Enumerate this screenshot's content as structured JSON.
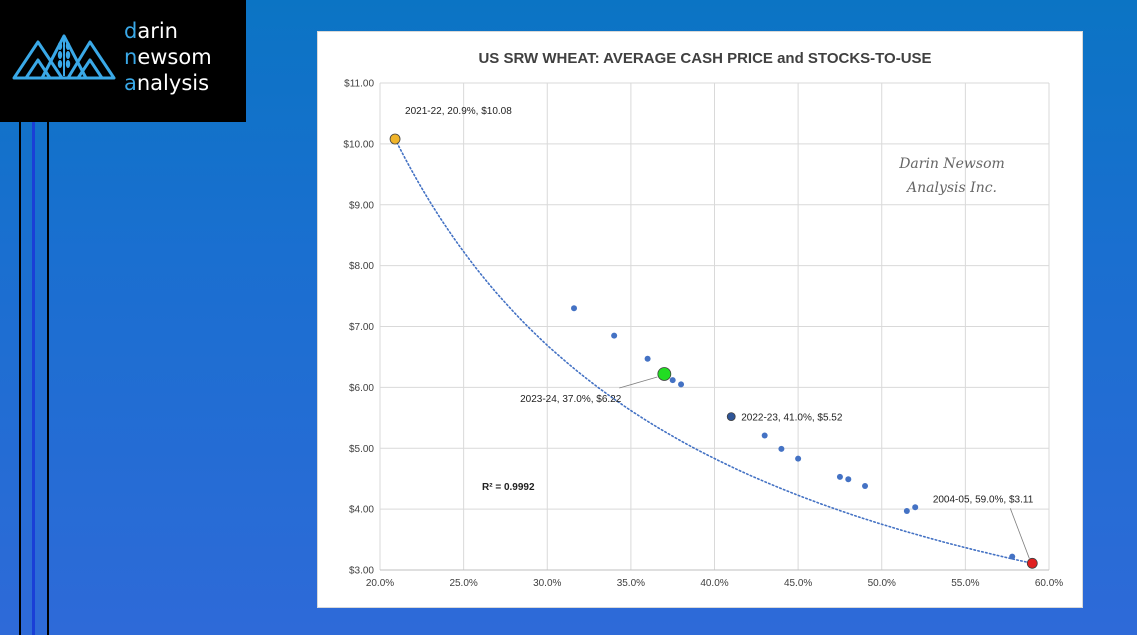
{
  "brand": {
    "line1_accent": "d",
    "line1_rest": "arin",
    "line2_accent": "n",
    "line2_rest": "ewsom",
    "line3_accent": "a",
    "line3_rest": "nalysis",
    "accent_color": "#3aa9e8"
  },
  "chart_data": {
    "type": "scatter",
    "title": "US SRW WHEAT: AVERAGE CASH PRICE and STOCKS-TO-USE",
    "xlabel": "",
    "ylabel": "",
    "xlim": [
      20.0,
      60.0
    ],
    "ylim": [
      3.0,
      11.0
    ],
    "x_ticks": [
      "20.0%",
      "25.0%",
      "30.0%",
      "35.0%",
      "40.0%",
      "45.0%",
      "50.0%",
      "55.0%",
      "60.0%"
    ],
    "y_ticks": [
      "$3.00",
      "$4.00",
      "$5.00",
      "$6.00",
      "$7.00",
      "$8.00",
      "$9.00",
      "$10.00",
      "$11.00"
    ],
    "grid": true,
    "trendline": {
      "style": "dotted",
      "color": "#4472c4",
      "r_squared_label": "R² = 0.9992"
    },
    "points": [
      {
        "x": 31.6,
        "y": 7.3
      },
      {
        "x": 34.0,
        "y": 6.85
      },
      {
        "x": 36.0,
        "y": 6.47
      },
      {
        "x": 37.5,
        "y": 6.12
      },
      {
        "x": 38.0,
        "y": 6.05
      },
      {
        "x": 43.0,
        "y": 5.21
      },
      {
        "x": 44.0,
        "y": 4.99
      },
      {
        "x": 45.0,
        "y": 4.83
      },
      {
        "x": 47.5,
        "y": 4.53
      },
      {
        "x": 48.0,
        "y": 4.49
      },
      {
        "x": 49.0,
        "y": 4.38
      },
      {
        "x": 51.5,
        "y": 3.97
      },
      {
        "x": 52.0,
        "y": 4.03
      },
      {
        "x": 57.8,
        "y": 3.22
      }
    ],
    "highlights": [
      {
        "x": 20.9,
        "y": 10.08,
        "label": "2021-22, 20.9%, $10.08",
        "color": "#f0b429"
      },
      {
        "x": 37.0,
        "y": 6.22,
        "label": "2023-24, 37.0%, $6.22",
        "color": "#22dd22"
      },
      {
        "x": 41.0,
        "y": 5.52,
        "label": "2022-23, 41.0%, $5.52",
        "color": "#2f5597"
      },
      {
        "x": 59.0,
        "y": 3.11,
        "label": "2004-05, 59.0%, $3.11",
        "color": "#e02020"
      }
    ],
    "point_color": "#4472c4",
    "watermark": [
      "Darin Newsom",
      "Analysis Inc."
    ]
  }
}
